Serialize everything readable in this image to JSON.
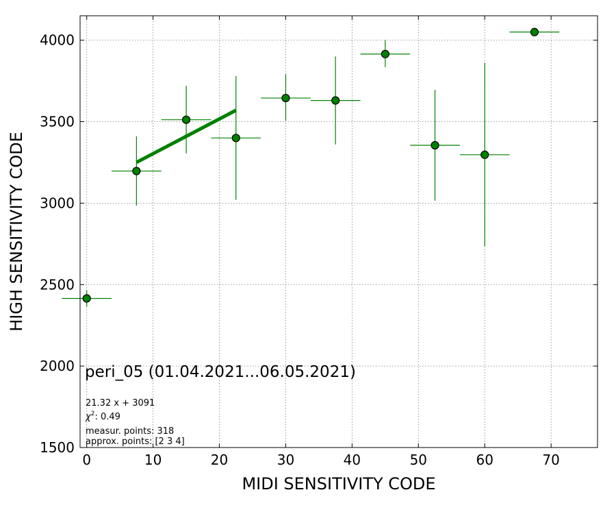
{
  "chart_data": {
    "type": "scatter",
    "xlabel": "MIDI SENSITIVITY CODE",
    "ylabel": "HIGH SENSITIVITY CODE",
    "xlim": [
      -1,
      77
    ],
    "ylim": [
      1500,
      4150
    ],
    "xticks": [
      0,
      10,
      20,
      30,
      40,
      50,
      60,
      70
    ],
    "yticks": [
      1500,
      2000,
      2500,
      3000,
      3500,
      4000
    ],
    "grid": true,
    "color": "#008000",
    "fit_color": "#008000",
    "points": [
      {
        "x": 0,
        "y": 2415,
        "xerr": 3.75,
        "yerr_low": 2365,
        "yerr_high": 2465
      },
      {
        "x": 7.5,
        "y": 3197,
        "xerr": 3.75,
        "yerr_low": 2985,
        "yerr_high": 3410
      },
      {
        "x": 15,
        "y": 3512,
        "xerr": 3.75,
        "yerr_low": 3305,
        "yerr_high": 3720
      },
      {
        "x": 22.5,
        "y": 3400,
        "xerr": 3.75,
        "yerr_low": 3020,
        "yerr_high": 3780
      },
      {
        "x": 30,
        "y": 3645,
        "xerr": 3.75,
        "yerr_low": 3505,
        "yerr_high": 3790
      },
      {
        "x": 37.5,
        "y": 3630,
        "xerr": 3.75,
        "yerr_low": 3360,
        "yerr_high": 3900
      },
      {
        "x": 45,
        "y": 3915,
        "xerr": 3.75,
        "yerr_low": 3835,
        "yerr_high": 4000
      },
      {
        "x": 52.5,
        "y": 3355,
        "xerr": 3.75,
        "yerr_low": 3015,
        "yerr_high": 3695
      },
      {
        "x": 60,
        "y": 3297,
        "xerr": 3.75,
        "yerr_low": 2735,
        "yerr_high": 3860
      },
      {
        "x": 67.5,
        "y": 4050,
        "xerr": 3.75,
        "yerr_low": 4050,
        "yerr_high": 4050
      }
    ],
    "fit_line": {
      "x": [
        7.5,
        22.5
      ],
      "y": [
        3250,
        3570
      ]
    },
    "annotations": {
      "title": "peri_05 (01.04.2021...06.05.2021)",
      "equation": "21.32 x + 3091",
      "chi2_symbol": "χ",
      "chi2_value": ": 0.49",
      "measur_points": "measur. points: 318",
      "approx_points": "approx. points: [2 3 4]"
    }
  }
}
